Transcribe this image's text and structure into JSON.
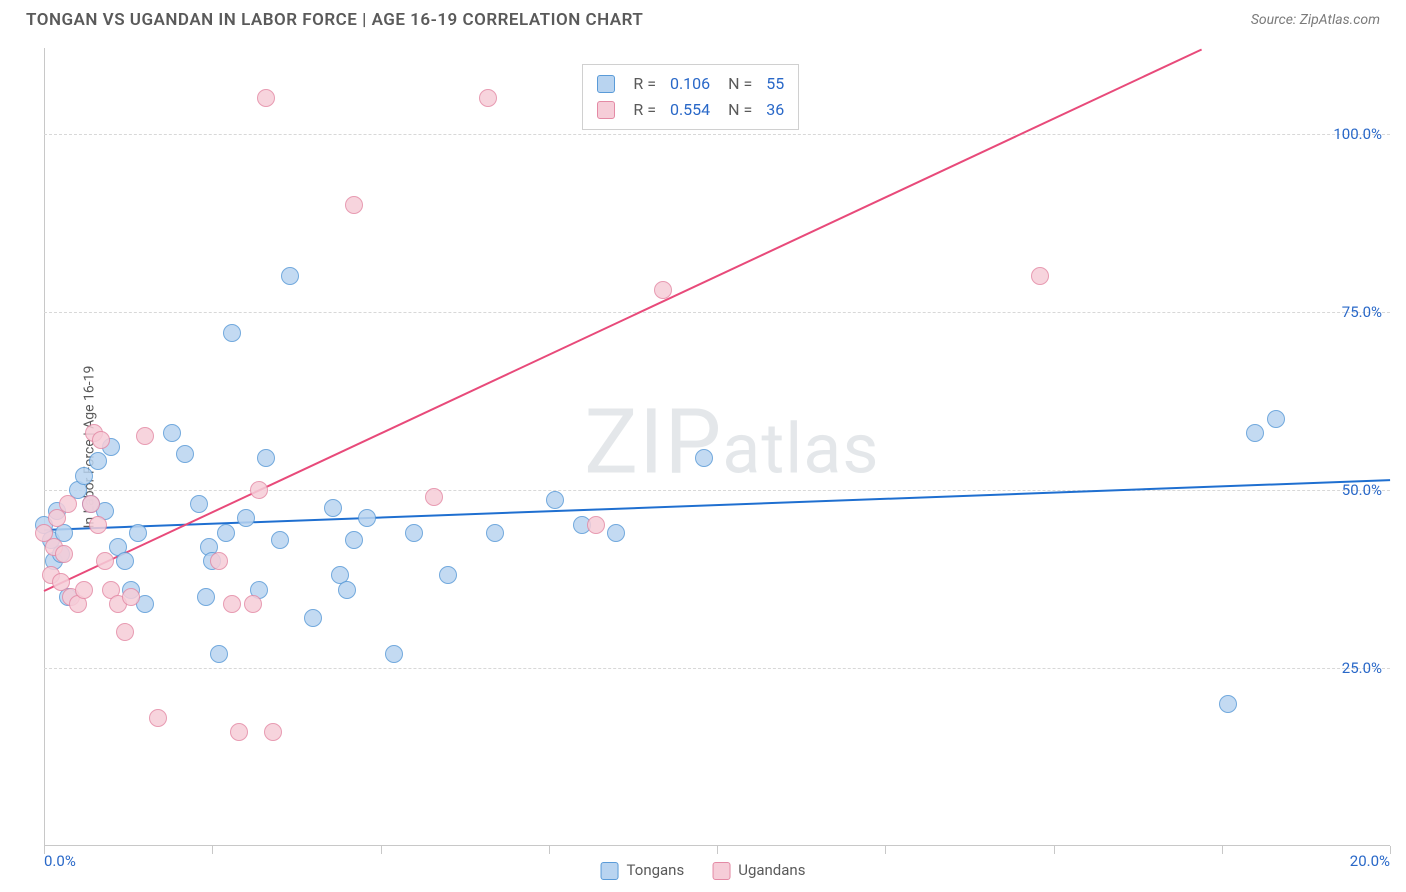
{
  "header": {
    "title": "TONGAN VS UGANDAN IN LABOR FORCE | AGE 16-19 CORRELATION CHART",
    "source_label": "Source:",
    "source_name": "ZipAtlas.com"
  },
  "chart": {
    "type": "scatter",
    "ylabel": "In Labor Force | Age 16-19",
    "watermark": "ZIPatlas",
    "background_color": "#ffffff",
    "grid_color": "#d8d8d8",
    "axis_color": "#c8c8c8",
    "label_color": "#2968c8",
    "xlim": [
      0,
      20
    ],
    "ylim": [
      0,
      112
    ],
    "y_gridlines": [
      25,
      50,
      75,
      100
    ],
    "y_tick_labels": [
      "25.0%",
      "50.0%",
      "75.0%",
      "100.0%"
    ],
    "x_ticks": [
      0,
      2.5,
      5,
      7.5,
      10,
      12.5,
      15,
      17.5,
      20
    ],
    "x_axis_labels": {
      "left": "0.0%",
      "right": "20.0%"
    },
    "series": [
      {
        "name": "Tongans",
        "color_fill": "#b9d4f0",
        "color_stroke": "#5a9bd8",
        "trend_color": "#1f6fd0",
        "point_radius": 9,
        "R": "0.106",
        "N": "55",
        "trend": {
          "x1": 0,
          "y1": 44.5,
          "x2": 20,
          "y2": 51.5
        },
        "points": [
          [
            0.0,
            45
          ],
          [
            0.1,
            43
          ],
          [
            0.15,
            40
          ],
          [
            0.2,
            47
          ],
          [
            0.25,
            41
          ],
          [
            0.3,
            44
          ],
          [
            0.35,
            35
          ],
          [
            0.5,
            50
          ],
          [
            0.6,
            52
          ],
          [
            0.7,
            48
          ],
          [
            0.8,
            54
          ],
          [
            0.9,
            47
          ],
          [
            1.0,
            56
          ],
          [
            1.1,
            42
          ],
          [
            1.2,
            40
          ],
          [
            1.3,
            36
          ],
          [
            1.4,
            44
          ],
          [
            1.5,
            34
          ],
          [
            1.9,
            58
          ],
          [
            2.1,
            55
          ],
          [
            2.3,
            48
          ],
          [
            2.4,
            35
          ],
          [
            2.45,
            42
          ],
          [
            2.5,
            40
          ],
          [
            2.6,
            27
          ],
          [
            2.7,
            44
          ],
          [
            2.8,
            72
          ],
          [
            3.0,
            46
          ],
          [
            3.2,
            36
          ],
          [
            3.3,
            54.5
          ],
          [
            3.5,
            43
          ],
          [
            3.65,
            80
          ],
          [
            4.0,
            32
          ],
          [
            4.3,
            47.5
          ],
          [
            4.4,
            38
          ],
          [
            4.5,
            36
          ],
          [
            4.6,
            43
          ],
          [
            4.8,
            46
          ],
          [
            5.2,
            27
          ],
          [
            5.5,
            44
          ],
          [
            6.0,
            38
          ],
          [
            6.7,
            44
          ],
          [
            7.6,
            48.5
          ],
          [
            8.0,
            45
          ],
          [
            8.5,
            44
          ],
          [
            9.8,
            54.5
          ],
          [
            18.0,
            58
          ],
          [
            18.3,
            60
          ],
          [
            17.6,
            20
          ]
        ]
      },
      {
        "name": "Ugandans",
        "color_fill": "#f6cdd8",
        "color_stroke": "#e48aa5",
        "trend_color": "#e84a7a",
        "point_radius": 9,
        "R": "0.554",
        "N": "36",
        "trend": {
          "x1": 0,
          "y1": 36,
          "x2": 17.2,
          "y2": 112
        },
        "points": [
          [
            0.0,
            44
          ],
          [
            0.1,
            38
          ],
          [
            0.15,
            42
          ],
          [
            0.2,
            46
          ],
          [
            0.25,
            37
          ],
          [
            0.3,
            41
          ],
          [
            0.35,
            48
          ],
          [
            0.4,
            35
          ],
          [
            0.5,
            34
          ],
          [
            0.6,
            36
          ],
          [
            0.7,
            48
          ],
          [
            0.75,
            58
          ],
          [
            0.8,
            45
          ],
          [
            0.85,
            57
          ],
          [
            0.9,
            40
          ],
          [
            1.0,
            36
          ],
          [
            1.1,
            34
          ],
          [
            1.2,
            30
          ],
          [
            1.3,
            35
          ],
          [
            1.5,
            57.5
          ],
          [
            1.7,
            18
          ],
          [
            2.6,
            40
          ],
          [
            2.8,
            34
          ],
          [
            2.9,
            16
          ],
          [
            3.1,
            34
          ],
          [
            3.2,
            50
          ],
          [
            3.3,
            105
          ],
          [
            3.4,
            16
          ],
          [
            4.6,
            90
          ],
          [
            5.8,
            49
          ],
          [
            6.6,
            105
          ],
          [
            8.2,
            45
          ],
          [
            9.2,
            78
          ],
          [
            14.8,
            80
          ]
        ]
      }
    ],
    "stats_box": {
      "left_pct": 40,
      "top_pct": 2
    },
    "legend_bottom": [
      {
        "label": "Tongans",
        "fill": "#b9d4f0",
        "stroke": "#5a9bd8"
      },
      {
        "label": "Ugandans",
        "fill": "#f6cdd8",
        "stroke": "#e48aa5"
      }
    ]
  }
}
